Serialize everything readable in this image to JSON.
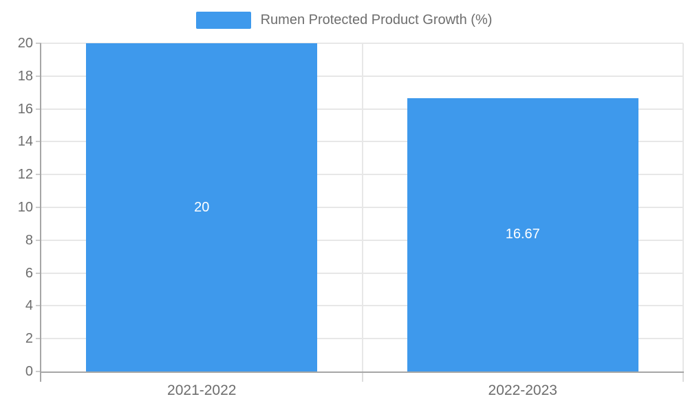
{
  "legend": {
    "label": "Rumen Protected Product Growth (%)",
    "swatch_color": "#3e99ec"
  },
  "chart_data": {
    "type": "bar",
    "title": "Rumen Protected Product Growth (%)",
    "categories": [
      "2021-2022",
      "2022-2023"
    ],
    "series": [
      {
        "name": "Rumen Protected Product Growth (%)",
        "values": [
          20,
          16.67
        ],
        "value_labels": [
          "20",
          "16.67"
        ],
        "color": "#3e99ec"
      }
    ],
    "xlabel": "",
    "ylabel": "",
    "ylim": [
      0,
      20
    ],
    "ytick_step": 2,
    "ytick_labels": [
      "0",
      "2",
      "4",
      "6",
      "8",
      "10",
      "12",
      "14",
      "16",
      "18",
      "20"
    ],
    "grid": true,
    "legend_position": "top",
    "value_label_color": "#ffffff",
    "axis_text_color": "#6d6d6d",
    "grid_color": "#e7e7e7",
    "axis_line_color": "#a6a6a6"
  }
}
